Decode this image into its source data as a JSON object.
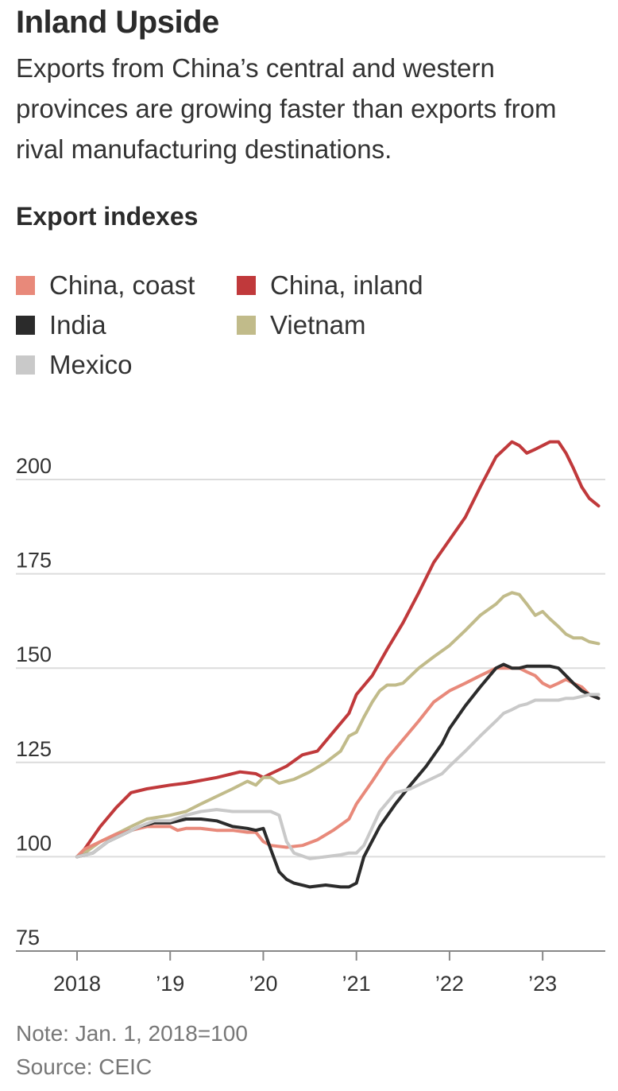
{
  "title": "Inland Upside",
  "subtitle": "Exports from China’s central and western provinces are growing faster than exports from rival manufacturing destinations.",
  "chart_title": "Export indexes",
  "note": "Note: Jan. 1, 2018=100",
  "source": "Source: CEIC",
  "legend": [
    {
      "label": "China, coast",
      "color": "#e8897a"
    },
    {
      "label": "China, inland",
      "color": "#c0393b"
    },
    {
      "label": "India",
      "color": "#2b2b2b"
    },
    {
      "label": "Vietnam",
      "color": "#c1bb8a"
    },
    {
      "label": "Mexico",
      "color": "#c9c9c9"
    }
  ],
  "chart_data": {
    "type": "line",
    "title": "Export indexes",
    "xlabel": "",
    "ylabel": "",
    "ylim": [
      75,
      210
    ],
    "y_ticks": [
      75,
      100,
      125,
      150,
      175,
      200
    ],
    "y_tick_labels": [
      "75",
      "100",
      "125",
      "150",
      "175",
      "200"
    ],
    "x_ticks": [
      2018,
      2019,
      2020,
      2021,
      2022,
      2023
    ],
    "x_tick_labels": [
      "2018",
      "’19",
      "’20",
      "’21",
      "’22",
      "’23"
    ],
    "xlim": [
      2018,
      2023.63
    ],
    "grid": true,
    "series": [
      {
        "name": "China, inland",
        "color": "#c0393b",
        "x": [
          2018.0,
          2018.08,
          2018.25,
          2018.42,
          2018.58,
          2018.75,
          2019.0,
          2019.17,
          2019.5,
          2019.75,
          2019.92,
          2020.0,
          2020.08,
          2020.25,
          2020.42,
          2020.58,
          2020.75,
          2020.92,
          2021.0,
          2021.17,
          2021.33,
          2021.5,
          2021.67,
          2021.83,
          2022.0,
          2022.17,
          2022.33,
          2022.5,
          2022.67,
          2022.75,
          2022.83,
          2022.92,
          2023.0,
          2023.08,
          2023.17,
          2023.25,
          2023.33,
          2023.42,
          2023.5,
          2023.6
        ],
        "y": [
          100,
          102,
          108,
          113,
          117,
          118,
          119,
          119.5,
          121,
          122.5,
          122,
          121,
          122,
          124,
          127,
          128,
          133,
          138,
          143,
          148,
          155,
          162,
          170,
          178,
          184,
          190,
          198,
          206,
          210,
          209,
          207,
          208,
          209,
          210,
          210,
          207,
          203,
          198,
          195,
          193
        ]
      },
      {
        "name": "Vietnam",
        "color": "#c1bb8a",
        "x": [
          2018.0,
          2018.08,
          2018.25,
          2018.42,
          2018.58,
          2018.75,
          2019.0,
          2019.17,
          2019.33,
          2019.5,
          2019.67,
          2019.83,
          2019.92,
          2020.0,
          2020.08,
          2020.17,
          2020.33,
          2020.5,
          2020.67,
          2020.83,
          2020.92,
          2021.0,
          2021.08,
          2021.17,
          2021.25,
          2021.33,
          2021.42,
          2021.5,
          2021.67,
          2021.83,
          2022.0,
          2022.17,
          2022.33,
          2022.5,
          2022.58,
          2022.67,
          2022.75,
          2022.83,
          2022.92,
          2023.0,
          2023.08,
          2023.17,
          2023.25,
          2023.33,
          2023.42,
          2023.5,
          2023.6
        ],
        "y": [
          100,
          101,
          104,
          106,
          108,
          110,
          111,
          112,
          114,
          116,
          118,
          120,
          119,
          121,
          121,
          119.5,
          120.5,
          122.5,
          125,
          128,
          132,
          133,
          137,
          141,
          144,
          145.5,
          145.5,
          146,
          150,
          153,
          156,
          160,
          164,
          167,
          169,
          170,
          169.5,
          167,
          164,
          165,
          163,
          161,
          159,
          158,
          158,
          157,
          156.5
        ]
      },
      {
        "name": "China, coast",
        "color": "#e8897a",
        "x": [
          2018.0,
          2018.08,
          2018.25,
          2018.42,
          2018.58,
          2018.75,
          2019.0,
          2019.08,
          2019.17,
          2019.33,
          2019.5,
          2019.67,
          2019.83,
          2019.92,
          2020.0,
          2020.08,
          2020.25,
          2020.42,
          2020.58,
          2020.75,
          2020.92,
          2021.0,
          2021.17,
          2021.33,
          2021.5,
          2021.67,
          2021.83,
          2022.0,
          2022.17,
          2022.33,
          2022.5,
          2022.67,
          2022.75,
          2022.83,
          2022.92,
          2023.0,
          2023.08,
          2023.17,
          2023.25,
          2023.33,
          2023.42,
          2023.5,
          2023.6
        ],
        "y": [
          100,
          102,
          104,
          106,
          107,
          108,
          108,
          107,
          107.5,
          107.5,
          107,
          107,
          106.5,
          106.5,
          104,
          103,
          102.5,
          103,
          104.5,
          107,
          110,
          114,
          120,
          126,
          131,
          136,
          141,
          144,
          146,
          148,
          150,
          150,
          150,
          149,
          148,
          146,
          145,
          146,
          147,
          146,
          145,
          143,
          142
        ]
      },
      {
        "name": "India",
        "color": "#2b2b2b",
        "x": [
          2018.0,
          2018.17,
          2018.33,
          2018.5,
          2018.67,
          2018.83,
          2019.0,
          2019.17,
          2019.33,
          2019.5,
          2019.67,
          2019.83,
          2019.92,
          2020.0,
          2020.08,
          2020.17,
          2020.25,
          2020.33,
          2020.5,
          2020.67,
          2020.83,
          2020.92,
          2021.0,
          2021.08,
          2021.25,
          2021.42,
          2021.58,
          2021.75,
          2021.92,
          2022.0,
          2022.17,
          2022.33,
          2022.5,
          2022.58,
          2022.67,
          2022.75,
          2022.83,
          2022.92,
          2023.0,
          2023.08,
          2023.17,
          2023.25,
          2023.33,
          2023.42,
          2023.5,
          2023.6
        ],
        "y": [
          100,
          101,
          104,
          106,
          108,
          109,
          109,
          110,
          110,
          109.5,
          108,
          107.5,
          107,
          107.5,
          102,
          96,
          94,
          93,
          92,
          92.5,
          92,
          92,
          93,
          100,
          108,
          114,
          119,
          124,
          130,
          134,
          140,
          145,
          150,
          151,
          150,
          150,
          150.5,
          150.5,
          150.5,
          150.5,
          150,
          148,
          146,
          144,
          143,
          142
        ]
      },
      {
        "name": "Mexico",
        "color": "#c9c9c9",
        "x": [
          2018.0,
          2018.17,
          2018.33,
          2018.5,
          2018.67,
          2018.83,
          2019.0,
          2019.17,
          2019.33,
          2019.5,
          2019.67,
          2019.83,
          2019.92,
          2020.0,
          2020.08,
          2020.17,
          2020.25,
          2020.33,
          2020.5,
          2020.67,
          2020.83,
          2020.92,
          2021.0,
          2021.08,
          2021.25,
          2021.42,
          2021.58,
          2021.75,
          2021.92,
          2022.0,
          2022.17,
          2022.33,
          2022.5,
          2022.58,
          2022.67,
          2022.75,
          2022.83,
          2022.92,
          2023.0,
          2023.08,
          2023.17,
          2023.25,
          2023.33,
          2023.42,
          2023.5,
          2023.6
        ],
        "y": [
          100,
          101,
          104,
          106,
          108,
          109.5,
          109.5,
          111,
          112,
          112.5,
          112,
          112,
          112,
          112,
          112,
          111,
          104,
          101,
          99.5,
          100,
          100.5,
          101,
          101,
          103,
          112,
          117,
          118,
          120,
          122,
          124,
          128,
          132,
          136,
          138,
          139,
          140,
          140.5,
          141.5,
          141.5,
          141.5,
          141.5,
          142,
          142,
          142.5,
          143,
          143
        ]
      }
    ]
  }
}
